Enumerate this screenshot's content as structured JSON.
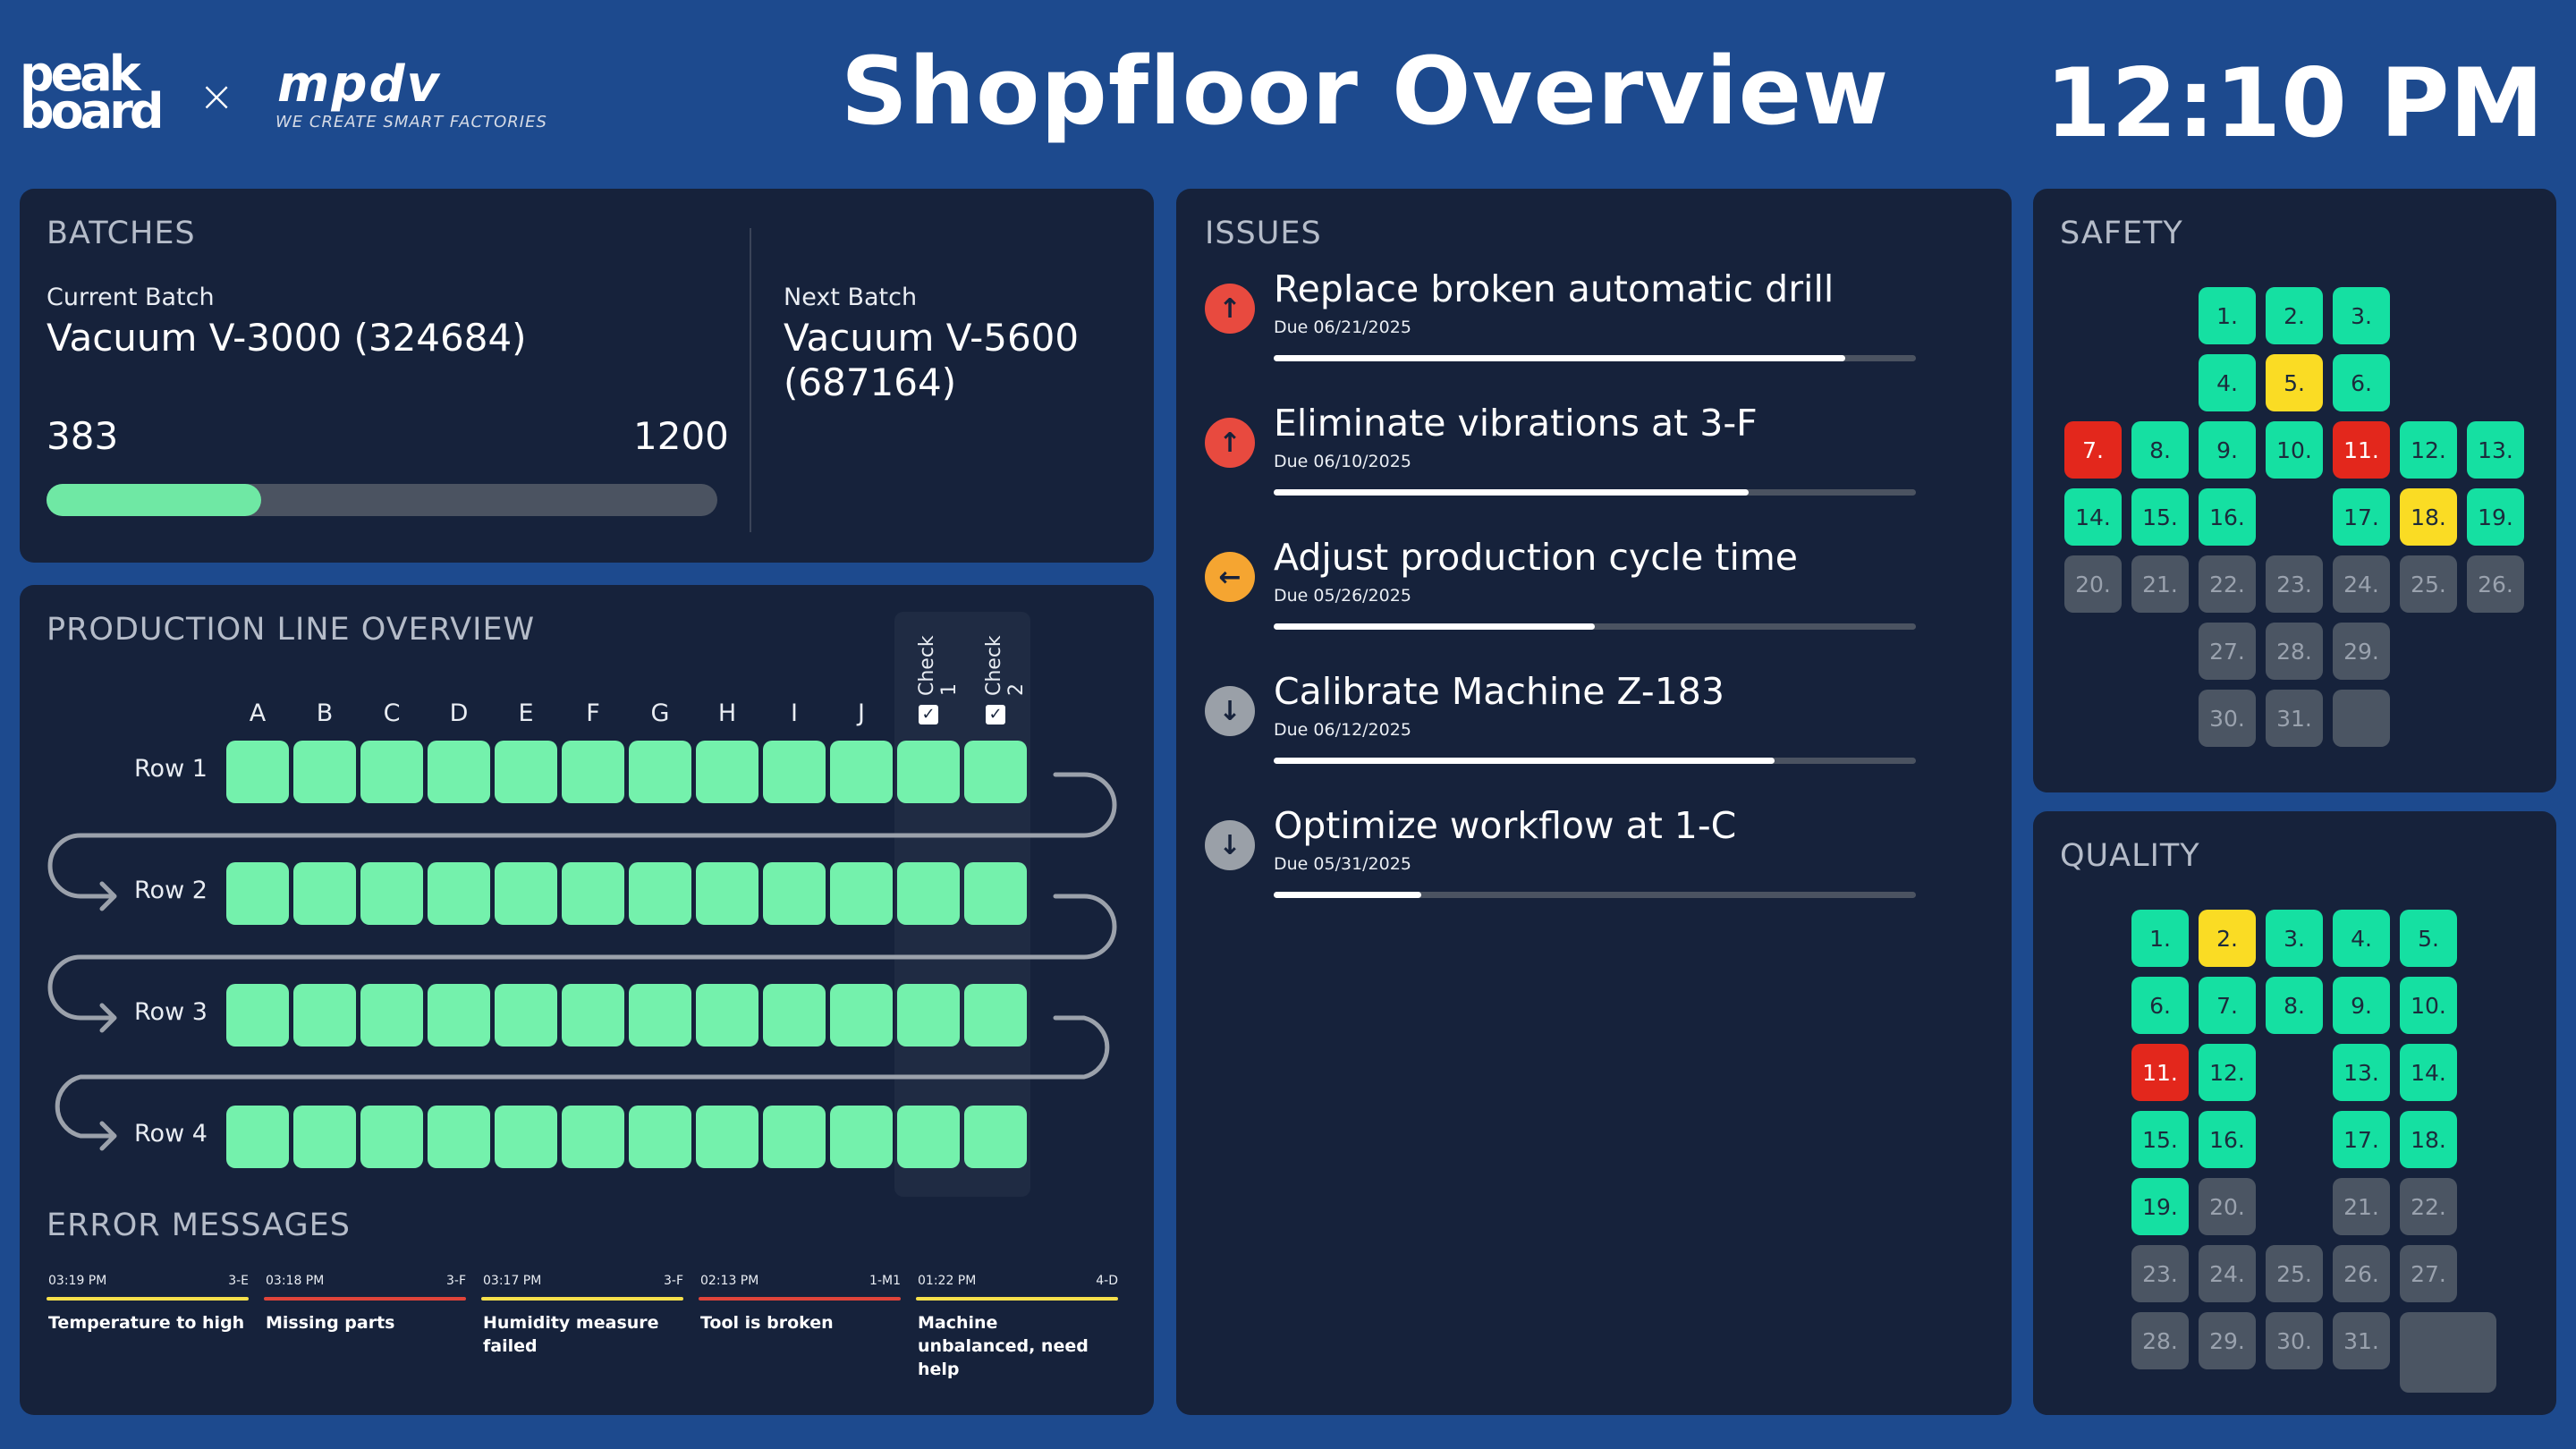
{
  "header": {
    "logo_peakboard": "peak board",
    "logo_separator": "×",
    "logo_mpdv": "mpdv",
    "logo_slogan": "WE CREATE SMART FACTORIES",
    "title": "Shopfloor Overview",
    "clock": "12:10 PM"
  },
  "batches": {
    "title": "BATCHES",
    "current_label": "Current Batch",
    "current_value": "Vacuum V-3000 (324684)",
    "count_done": "383",
    "count_total": "1200",
    "progress": 0.32,
    "next_label": "Next Batch",
    "next_value": "Vacuum V-5600 (687164)"
  },
  "production": {
    "title": "PRODUCTION LINE OVERVIEW",
    "columns": [
      "A",
      "B",
      "C",
      "D",
      "E",
      "F",
      "G",
      "H",
      "I",
      "J"
    ],
    "checks": [
      {
        "label": "Check 1",
        "checked": true
      },
      {
        "label": "Check 2",
        "checked": true
      }
    ],
    "rows": [
      "Row 1",
      "Row 2",
      "Row 3",
      "Row 4"
    ],
    "cell_color": "#74f1ac"
  },
  "errors": {
    "title": "ERROR MESSAGES",
    "items": [
      {
        "time": "03:19 PM",
        "location": "3-E",
        "message": "Temperature to high",
        "color": "#f7e04b"
      },
      {
        "time": "03:18 PM",
        "location": "3-F",
        "message": "Missing parts",
        "color": "#e0443a"
      },
      {
        "time": "03:17 PM",
        "location": "3-F",
        "message": "Humidity measure failed",
        "color": "#f7e04b"
      },
      {
        "time": "02:13 PM",
        "location": "1-M1",
        "message": "Tool is broken",
        "color": "#e0443a"
      },
      {
        "time": "01:22 PM",
        "location": "4-D",
        "message": "Machine unbalanced, need help",
        "color": "#f7e04b"
      }
    ]
  },
  "issues": {
    "title": "ISSUES",
    "items": [
      {
        "title": "Replace broken automatic drill",
        "due": "Due 06/21/2025",
        "progress": 0.89,
        "priority": "high",
        "icon": "arrow-up-icon",
        "color": "#e84a3f",
        "glyph": "↑"
      },
      {
        "title": "Eliminate vibrations at 3-F",
        "due": "Due 06/10/2025",
        "progress": 0.74,
        "priority": "high",
        "icon": "arrow-up-icon",
        "color": "#e84a3f",
        "glyph": "↑"
      },
      {
        "title": "Adjust production cycle time",
        "due": "Due 05/26/2025",
        "progress": 0.5,
        "priority": "medium",
        "icon": "arrow-left-icon",
        "color": "#f5a531",
        "glyph": "←"
      },
      {
        "title": "Calibrate Machine Z-183",
        "due": "Due 06/12/2025",
        "progress": 0.78,
        "priority": "low",
        "icon": "arrow-down-icon",
        "color": "#9aa0a8",
        "glyph": "↓"
      },
      {
        "title": "Optimize workflow at 1-C",
        "due": "Due 05/31/2025",
        "progress": 0.23,
        "priority": "low",
        "icon": "arrow-down-icon",
        "color": "#9aa0a8",
        "glyph": "↓"
      }
    ]
  },
  "status_colors": {
    "green": "#15e0a2",
    "yellow": "#fadc24",
    "red": "#e3271c",
    "gray": "#4b5563"
  },
  "safety": {
    "title": "SAFETY",
    "days": [
      {
        "label": "1.",
        "status": "green"
      },
      {
        "label": "2.",
        "status": "green"
      },
      {
        "label": "3.",
        "status": "green"
      },
      {
        "label": "4.",
        "status": "green"
      },
      {
        "label": "5.",
        "status": "yellow"
      },
      {
        "label": "6.",
        "status": "green"
      },
      {
        "label": "7.",
        "status": "red"
      },
      {
        "label": "8.",
        "status": "green"
      },
      {
        "label": "9.",
        "status": "green"
      },
      {
        "label": "10.",
        "status": "green"
      },
      {
        "label": "11.",
        "status": "red"
      },
      {
        "label": "12.",
        "status": "green"
      },
      {
        "label": "13.",
        "status": "green"
      },
      {
        "label": "14.",
        "status": "green"
      },
      {
        "label": "15.",
        "status": "green"
      },
      {
        "label": "16.",
        "status": "green"
      },
      {
        "label": "17.",
        "status": "green"
      },
      {
        "label": "18.",
        "status": "yellow"
      },
      {
        "label": "19.",
        "status": "green"
      },
      {
        "label": "20.",
        "status": "gray"
      },
      {
        "label": "21.",
        "status": "gray"
      },
      {
        "label": "22.",
        "status": "gray"
      },
      {
        "label": "23.",
        "status": "gray"
      },
      {
        "label": "24.",
        "status": "gray"
      },
      {
        "label": "25.",
        "status": "gray"
      },
      {
        "label": "26.",
        "status": "gray"
      },
      {
        "label": "27.",
        "status": "gray"
      },
      {
        "label": "28.",
        "status": "gray"
      },
      {
        "label": "29.",
        "status": "gray"
      },
      {
        "label": "30.",
        "status": "gray"
      },
      {
        "label": "31.",
        "status": "gray"
      },
      {
        "label": "",
        "status": "gray"
      }
    ]
  },
  "quality": {
    "title": "QUALITY",
    "days": [
      {
        "label": "1.",
        "status": "green"
      },
      {
        "label": "2.",
        "status": "yellow"
      },
      {
        "label": "3.",
        "status": "green"
      },
      {
        "label": "4.",
        "status": "green"
      },
      {
        "label": "5.",
        "status": "green"
      },
      {
        "label": "6.",
        "status": "green"
      },
      {
        "label": "7.",
        "status": "green"
      },
      {
        "label": "8.",
        "status": "green"
      },
      {
        "label": "9.",
        "status": "green"
      },
      {
        "label": "10.",
        "status": "green"
      },
      {
        "label": "11.",
        "status": "red"
      },
      {
        "label": "12.",
        "status": "green"
      },
      {
        "label": "13.",
        "status": "green"
      },
      {
        "label": "14.",
        "status": "green"
      },
      {
        "label": "15.",
        "status": "green"
      },
      {
        "label": "16.",
        "status": "green"
      },
      {
        "label": "17.",
        "status": "green"
      },
      {
        "label": "18.",
        "status": "green"
      },
      {
        "label": "19.",
        "status": "green"
      },
      {
        "label": "20.",
        "status": "gray"
      },
      {
        "label": "21.",
        "status": "gray"
      },
      {
        "label": "22.",
        "status": "gray"
      },
      {
        "label": "23.",
        "status": "gray"
      },
      {
        "label": "24.",
        "status": "gray"
      },
      {
        "label": "25.",
        "status": "gray"
      },
      {
        "label": "26.",
        "status": "gray"
      },
      {
        "label": "27.",
        "status": "gray"
      },
      {
        "label": "28.",
        "status": "gray"
      },
      {
        "label": "29.",
        "status": "gray"
      },
      {
        "label": "30.",
        "status": "gray"
      },
      {
        "label": "31.",
        "status": "gray"
      },
      {
        "label": "",
        "status": "gray"
      }
    ]
  }
}
